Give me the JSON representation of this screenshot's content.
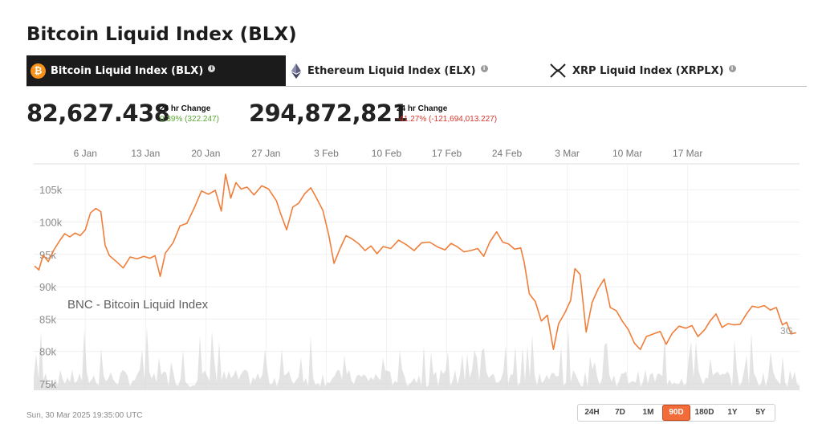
{
  "page_title": "Bitcoin Liquid Index (BLX)",
  "tabs": [
    {
      "label": "Bitcoin Liquid Index (BLX)",
      "icon": "bitcoin-icon",
      "active": true
    },
    {
      "label": "Ethereum Liquid Index (ELX)",
      "icon": "ethereum-icon",
      "active": false
    },
    {
      "label": "XRP Liquid Index (XRPLX)",
      "icon": "xrp-icon",
      "active": false
    }
  ],
  "info_glyph": "i",
  "btc_glyph": "₿",
  "stats": [
    {
      "price": "82,627.438",
      "change_title": "24 hr Change",
      "change_value": "0.39% (322.247)",
      "direction": "up"
    },
    {
      "price": "294,872,821",
      "change_title": "24 hr Change",
      "change_value": "-41.27% (-121,694,013.227)",
      "direction": "down"
    }
  ],
  "colors": {
    "line": "#f07e3a",
    "volume": "#d9d9d9",
    "up": "#5aa832",
    "down": "#d9352b",
    "active_range": "#f26c3a"
  },
  "timestamp": "Sun, 30 Mar 2025 19:35:00 UTC",
  "range_buttons": [
    "24H",
    "7D",
    "1M",
    "90D",
    "180D",
    "1Y",
    "5Y"
  ],
  "active_range": "90D",
  "chart_data": {
    "type": "line",
    "title": "",
    "watermark": "BNC - Bitcoin Liquid Index",
    "end_label": "3G",
    "x_ticks": [
      "6 Jan",
      "13 Jan",
      "20 Jan",
      "27 Jan",
      "3 Feb",
      "10 Feb",
      "17 Feb",
      "24 Feb",
      "3 Mar",
      "10 Mar",
      "17 Mar"
    ],
    "x_tick_days": [
      6,
      13,
      20,
      27,
      34,
      41,
      48,
      55,
      62,
      69,
      76
    ],
    "y_ticks": [
      "75k",
      "80k",
      "85k",
      "90k",
      "95k",
      "100k",
      "105k"
    ],
    "y_tick_values": [
      75000,
      80000,
      85000,
      90000,
      95000,
      100000,
      105000
    ],
    "xlim": [
      0,
      89
    ],
    "ylim": [
      74000,
      109000
    ],
    "grid": true,
    "legend": "none",
    "series": [
      {
        "values": [
          [
            0.1,
            93200
          ],
          [
            0.6,
            92600
          ],
          [
            1.1,
            94900
          ],
          [
            1.7,
            93900
          ],
          [
            2.3,
            95600
          ],
          [
            3.0,
            97100
          ],
          [
            3.6,
            98200
          ],
          [
            4.2,
            97700
          ],
          [
            4.8,
            98300
          ],
          [
            5.4,
            97900
          ],
          [
            6.0,
            98800
          ],
          [
            6.6,
            101400
          ],
          [
            7.2,
            102100
          ],
          [
            7.8,
            101600
          ],
          [
            8.3,
            96400
          ],
          [
            8.8,
            94800
          ],
          [
            9.6,
            93900
          ],
          [
            10.4,
            92900
          ],
          [
            11.2,
            94600
          ],
          [
            12.0,
            94300
          ],
          [
            12.8,
            94700
          ],
          [
            13.5,
            94400
          ],
          [
            14.1,
            94800
          ],
          [
            14.7,
            91600
          ],
          [
            15.3,
            95200
          ],
          [
            16.2,
            96800
          ],
          [
            17.0,
            99400
          ],
          [
            17.8,
            99800
          ],
          [
            18.7,
            102300
          ],
          [
            19.5,
            104800
          ],
          [
            20.3,
            104300
          ],
          [
            21.1,
            104900
          ],
          [
            21.8,
            101700
          ],
          [
            22.3,
            107400
          ],
          [
            22.9,
            103700
          ],
          [
            23.5,
            106100
          ],
          [
            24.1,
            105100
          ],
          [
            24.8,
            105400
          ],
          [
            25.6,
            104200
          ],
          [
            26.5,
            105600
          ],
          [
            27.3,
            105100
          ],
          [
            28.2,
            103300
          ],
          [
            28.7,
            101300
          ],
          [
            29.4,
            98800
          ],
          [
            30.1,
            102300
          ],
          [
            30.8,
            102900
          ],
          [
            31.5,
            104400
          ],
          [
            32.2,
            105300
          ],
          [
            32.9,
            103600
          ],
          [
            33.6,
            101800
          ],
          [
            34.3,
            97900
          ],
          [
            34.9,
            93600
          ],
          [
            35.6,
            95900
          ],
          [
            36.3,
            97900
          ],
          [
            37.0,
            97400
          ],
          [
            37.8,
            96600
          ],
          [
            38.5,
            95600
          ],
          [
            39.2,
            96300
          ],
          [
            39.9,
            95100
          ],
          [
            40.6,
            96200
          ],
          [
            41.5,
            95900
          ],
          [
            42.4,
            97200
          ],
          [
            43.3,
            96500
          ],
          [
            44.2,
            95600
          ],
          [
            45.1,
            96800
          ],
          [
            46.0,
            96900
          ],
          [
            47.0,
            96100
          ],
          [
            47.8,
            95700
          ],
          [
            48.5,
            96700
          ],
          [
            49.2,
            96200
          ],
          [
            50.0,
            95400
          ],
          [
            50.8,
            95600
          ],
          [
            51.6,
            95900
          ],
          [
            52.3,
            94700
          ],
          [
            53.0,
            96900
          ],
          [
            53.8,
            98500
          ],
          [
            54.5,
            96900
          ],
          [
            55.2,
            96600
          ],
          [
            55.9,
            95800
          ],
          [
            56.6,
            96000
          ],
          [
            57.0,
            93800
          ],
          [
            57.6,
            88900
          ],
          [
            58.3,
            87700
          ],
          [
            59.0,
            84700
          ],
          [
            59.7,
            85600
          ],
          [
            60.4,
            80300
          ],
          [
            61.0,
            84300
          ],
          [
            61.7,
            85900
          ],
          [
            62.4,
            87900
          ],
          [
            62.9,
            92800
          ],
          [
            63.5,
            91900
          ],
          [
            64.2,
            83000
          ],
          [
            64.9,
            87600
          ],
          [
            65.6,
            89700
          ],
          [
            66.3,
            91200
          ],
          [
            67.0,
            86800
          ],
          [
            67.7,
            86300
          ],
          [
            68.4,
            84700
          ],
          [
            69.1,
            83400
          ],
          [
            69.8,
            81300
          ],
          [
            70.5,
            80300
          ],
          [
            71.2,
            82300
          ],
          [
            72.0,
            82700
          ],
          [
            72.8,
            83100
          ],
          [
            73.5,
            81100
          ],
          [
            74.2,
            82800
          ],
          [
            75.0,
            83900
          ],
          [
            75.8,
            83600
          ],
          [
            76.5,
            84000
          ],
          [
            77.2,
            82300
          ],
          [
            78.0,
            83400
          ],
          [
            78.6,
            84700
          ],
          [
            79.3,
            85800
          ],
          [
            80.0,
            83700
          ],
          [
            80.7,
            84300
          ],
          [
            81.4,
            84100
          ],
          [
            82.1,
            84200
          ],
          [
            82.8,
            85700
          ],
          [
            83.5,
            87000
          ],
          [
            84.2,
            86800
          ],
          [
            84.9,
            87100
          ],
          [
            85.6,
            86400
          ],
          [
            86.3,
            86800
          ],
          [
            87.0,
            84100
          ],
          [
            87.5,
            84500
          ],
          [
            88.0,
            82700
          ],
          [
            88.6,
            82900
          ]
        ]
      }
    ]
  }
}
